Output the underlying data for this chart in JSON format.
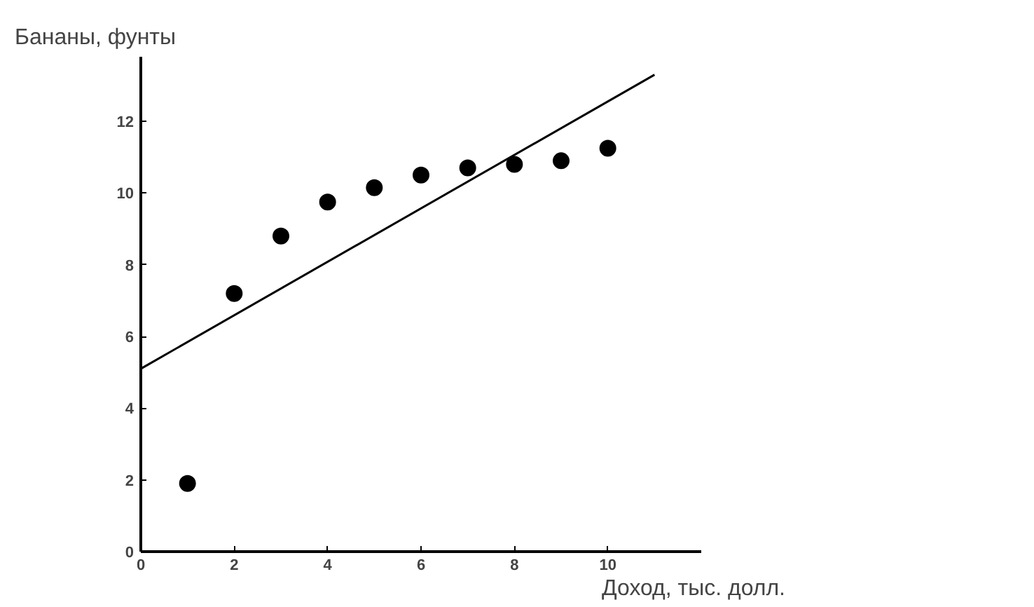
{
  "chart_data": {
    "type": "scatter",
    "xlabel": "Доход, тыс. долл.",
    "ylabel": "Бананы, фунты",
    "x": [
      1,
      2,
      3,
      4,
      5,
      6,
      7,
      8,
      9,
      10
    ],
    "series": [
      {
        "color": "#000000",
        "values": [
          1.9,
          7.2,
          8.8,
          9.75,
          10.15,
          10.5,
          10.7,
          10.8,
          10.9,
          11.25
        ]
      },
      {
        "type": "line",
        "color": "#000000",
        "x": [
          0,
          11
        ],
        "values": [
          5.1,
          13.3
        ],
        "marker": "none"
      }
    ],
    "xlim": [
      0,
      12
    ],
    "ylim": [
      0,
      13.8
    ],
    "xticks": [
      0,
      2,
      4,
      6,
      8,
      10
    ],
    "yticks": [
      0,
      2,
      4,
      6,
      8,
      10,
      12
    ],
    "grid": false,
    "marker": "circle"
  }
}
